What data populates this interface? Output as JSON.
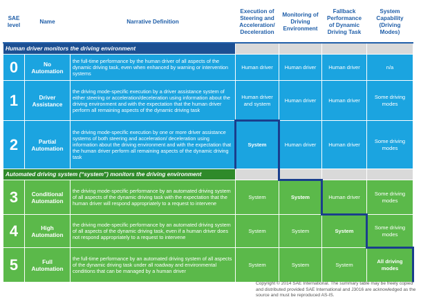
{
  "header": {
    "columns": [
      "SAE level",
      "Name",
      "Narrative Definition",
      "Execution of Steering and Acceleration/ Deceleration",
      "Monitoring of Driving Environment",
      "Fallback Performance of Dynamic Driving Task",
      "System Capability (Driving Modes)"
    ]
  },
  "sections": [
    {
      "title": "Human driver monitors the driving environment",
      "rows": [
        {
          "level": 0,
          "name": "No Automation",
          "definition": "the full-time performance by the human driver of all aspects of the dynamic driving task, even when enhanced by warning or intervention systems",
          "execution": "Human driver",
          "monitoring": "Human driver",
          "fallback": "Human driver",
          "capability": "n/a"
        },
        {
          "level": 1,
          "name": "Driver Assistance",
          "definition": "the driving mode-specific execution by a driver assistance system of either steering or acceleration/deceleration using information about the driving environment and with the expectation that the human driver perform all remaining aspects of the dynamic driving task",
          "execution": "Human driver and system",
          "monitoring": "Human driver",
          "fallback": "Human driver",
          "capability": "Some driving modes"
        },
        {
          "level": 2,
          "name": "Partial Automation",
          "definition": "the driving mode-specific execution by one or more driver assistance systems of both steering and acceleration/ deceleration using information about the driving environment and with the expectation that the human driver perform all remaining aspects of the dynamic driving task",
          "execution": "System",
          "monitoring": "Human driver",
          "fallback": "Human driver",
          "capability": "Some driving modes"
        }
      ]
    },
    {
      "title": "Automated driving system (“system”) monitors the driving environment",
      "rows": [
        {
          "level": 3,
          "name": "Conditional Automation",
          "definition": "the driving mode-specific performance by an automated driving system of all aspects of the dynamic driving task with the expectation that the human driver will respond appropriately to a request to intervene",
          "execution": "System",
          "monitoring": "System",
          "fallback": "Human driver",
          "capability": "Some driving modes"
        },
        {
          "level": 4,
          "name": "High Automation",
          "definition": "the driving mode-specific performance by an automated driving system of all aspects of the dynamic driving task, even if a human driver does not respond appropriately to a request to intervene",
          "execution": "System",
          "monitoring": "System",
          "fallback": "System",
          "capability": "Some driving modes"
        },
        {
          "level": 5,
          "name": "Full Automation",
          "definition": "the full-time performance by an automated driving system of all aspects of the dynamic driving task under all roadway and environmental conditions that can be managed by a human driver",
          "execution": "System",
          "monitoring": "System",
          "fallback": "System",
          "capability": "All driving modes"
        }
      ]
    }
  ],
  "footer": "Copyright © 2014 SAE International. The summary table may be freely copied and distributed provided SAE International and J3016 are acknowledged as the source and must be reproduced AS-IS."
}
